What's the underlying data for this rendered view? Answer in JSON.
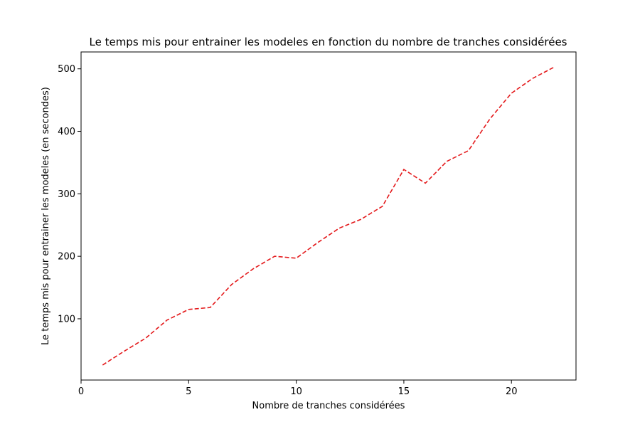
{
  "chart_data": {
    "type": "line",
    "title": "Le temps mis pour entrainer les modeles en fonction du nombre de tranches considérées",
    "xlabel": "Nombre de tranches considérées",
    "ylabel": "Le temps mis pour entrainer les modeles (en secondes)",
    "xlim": [
      0,
      23
    ],
    "ylim": [
      2,
      527
    ],
    "xticks": [
      0,
      5,
      10,
      15,
      20
    ],
    "yticks": [
      100,
      200,
      300,
      400,
      500
    ],
    "grid": false,
    "series": [
      {
        "color": "#e41a1c",
        "line_style": "dashed",
        "x": [
          1,
          2,
          3,
          4,
          5,
          6,
          7,
          8,
          9,
          10,
          11,
          12,
          13,
          14,
          15,
          16,
          17,
          18,
          19,
          20,
          21,
          22
        ],
        "y": [
          26,
          48,
          69,
          98,
          115,
          118,
          155,
          180,
          200,
          197,
          222,
          245,
          259,
          280,
          339,
          317,
          352,
          369,
          420,
          461,
          485,
          503
        ]
      }
    ]
  }
}
